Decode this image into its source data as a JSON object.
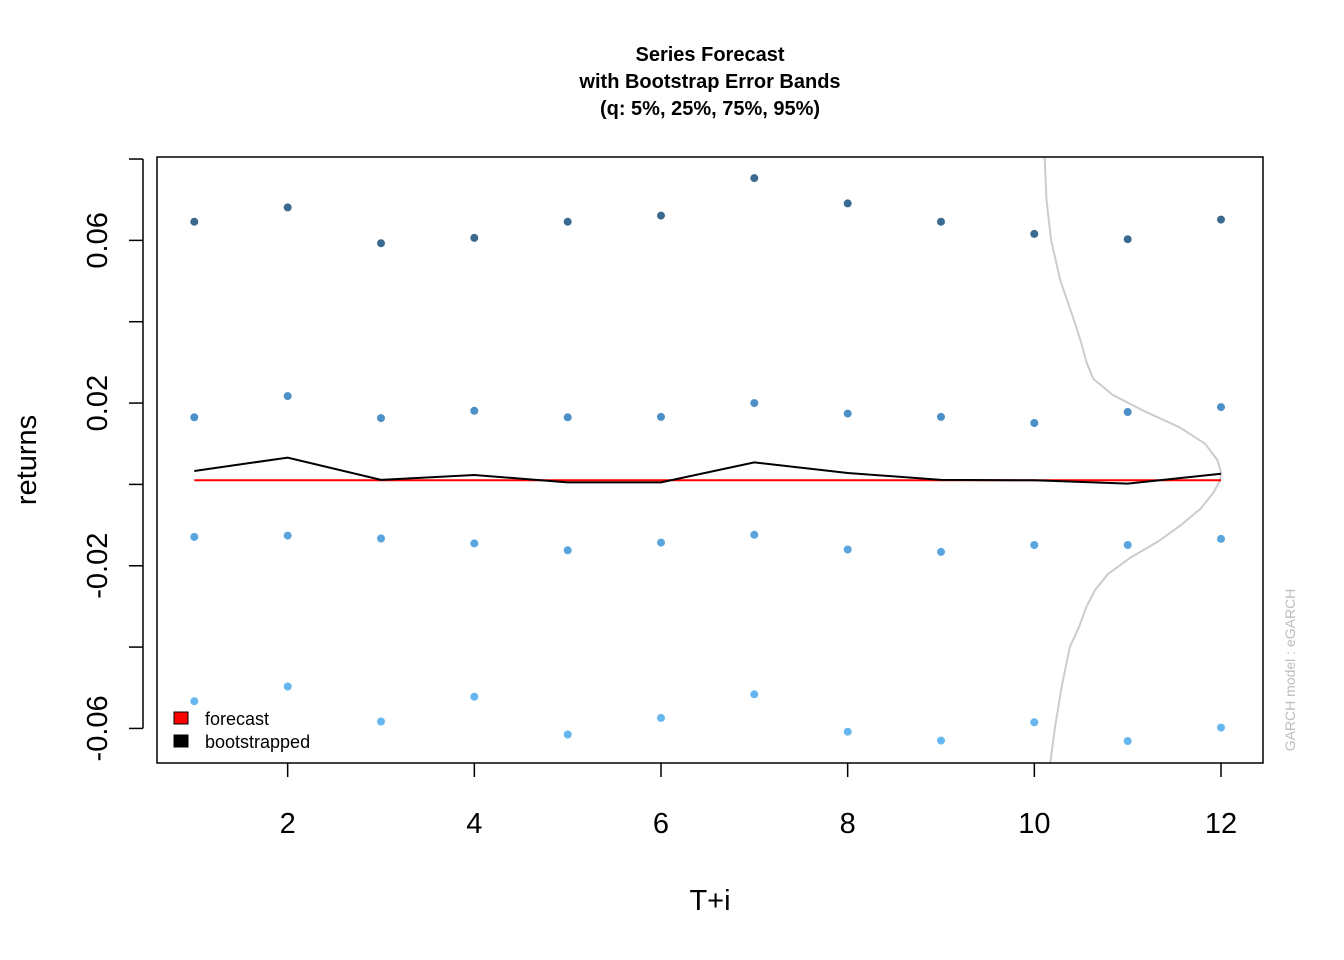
{
  "chart_data": {
    "type": "scatter",
    "title": [
      "Series Forecast",
      "with Bootstrap Error Bands",
      "(q: 5%, 25%, 75%, 95%)"
    ],
    "xlabel": "T+i",
    "ylabel": "returns",
    "xlim": [
      0.6,
      12.45
    ],
    "ylim": [
      -0.0685,
      0.0805
    ],
    "x_ticks": [
      2,
      4,
      6,
      8,
      10,
      12
    ],
    "x_tick_labels": [
      "2",
      "4",
      "6",
      "8",
      "10",
      "12"
    ],
    "y_ticks": [
      -0.06,
      -0.04,
      -0.02,
      0.0,
      0.02,
      0.04,
      0.06,
      0.08
    ],
    "y_tick_labels": [
      "-0.06",
      "",
      "-0.02",
      "",
      "0.02",
      "",
      "0.06",
      ""
    ],
    "x": [
      1,
      2,
      3,
      4,
      5,
      6,
      7,
      8,
      9,
      10,
      11,
      12
    ],
    "quantile_series": [
      {
        "color": "#3a6a90",
        "values": [
          0.0646,
          0.0681,
          0.0593,
          0.0606,
          0.0646,
          0.0661,
          0.0753,
          0.0691,
          0.0646,
          0.0616,
          0.0603,
          0.0651
        ]
      },
      {
        "color": "#4d8fc7",
        "values": [
          0.0165,
          0.0217,
          0.0163,
          0.0181,
          0.0165,
          0.0166,
          0.02,
          0.0174,
          0.0166,
          0.0151,
          0.0178,
          0.019
        ]
      },
      {
        "color": "#5aa5de",
        "values": [
          -0.0129,
          -0.0126,
          -0.0133,
          -0.0145,
          -0.0162,
          -0.0143,
          -0.0124,
          -0.016,
          -0.0166,
          -0.0149,
          -0.0149,
          -0.0134
        ]
      },
      {
        "color": "#66b6ef",
        "values": [
          -0.0533,
          -0.0497,
          -0.0583,
          -0.0522,
          -0.0615,
          -0.0574,
          -0.0516,
          -0.0608,
          -0.063,
          -0.0585,
          -0.0631,
          -0.0598
        ]
      }
    ],
    "series": [
      {
        "name": "forecast",
        "color": "#ff0000",
        "values": [
          0.001,
          0.001,
          0.001,
          0.001,
          0.001,
          0.001,
          0.001,
          0.001,
          0.001,
          0.001,
          0.001,
          0.001
        ]
      },
      {
        "name": "bootstrapped",
        "color": "#000000",
        "values": [
          0.0033,
          0.0066,
          0.0011,
          0.0023,
          0.0005,
          0.0005,
          0.0054,
          0.0028,
          0.0011,
          0.001,
          0.0002,
          0.0026
        ]
      }
    ],
    "density_curve": {
      "color": "#cccccc",
      "y": [
        0.0805,
        0.07,
        0.06,
        0.05,
        0.04,
        0.035,
        0.03,
        0.026,
        0.022,
        0.018,
        0.014,
        0.01,
        0.006,
        0.003,
        0.001,
        -0.002,
        -0.006,
        -0.01,
        -0.014,
        -0.018,
        -0.022,
        -0.026,
        -0.03,
        -0.035,
        -0.04,
        -0.05,
        -0.06,
        -0.0685
      ],
      "x": [
        10.11,
        10.13,
        10.18,
        10.28,
        10.43,
        10.5,
        10.56,
        10.63,
        10.84,
        11.18,
        11.56,
        11.83,
        11.96,
        12.0,
        11.99,
        11.92,
        11.78,
        11.57,
        11.33,
        11.03,
        10.79,
        10.65,
        10.56,
        10.48,
        10.38,
        10.29,
        10.22,
        10.17
      ]
    },
    "legend": {
      "position": "bottom-left",
      "entries": [
        "forecast",
        "bootstrapped"
      ]
    },
    "side_note": "GARCH model : eGARCH",
    "grid": false
  }
}
